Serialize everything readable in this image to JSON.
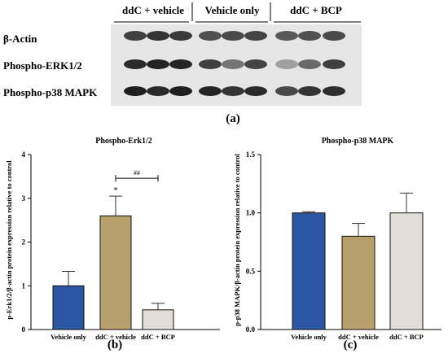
{
  "figure_a": {
    "group_labels": [
      "ddC + vehicle",
      "Vehicle only",
      "ddC + BCP"
    ],
    "row_labels": [
      "β-Actin",
      "Phospho-ERK1/2",
      "Phospho-p38 MAPK"
    ],
    "panel_label": "(a)",
    "band_intensity": [
      [
        0.8,
        0.85,
        0.82,
        0.72,
        0.75,
        0.78,
        0.68,
        0.72,
        0.75
      ],
      [
        0.9,
        0.92,
        0.92,
        0.8,
        0.55,
        0.78,
        0.35,
        0.6,
        0.8
      ],
      [
        0.95,
        0.9,
        0.95,
        0.92,
        0.85,
        0.9,
        0.75,
        0.85,
        0.88
      ]
    ]
  },
  "chart_data": [
    {
      "type": "bar",
      "title": "Phospho-Erk1/2",
      "panel_label": "(b)",
      "ylabel": "p-Erk1/2/β-actin protein expression relative to control",
      "categories": [
        "Vehicle only",
        "ddC + vehicle",
        "ddC + BCP"
      ],
      "values": [
        1.0,
        2.6,
        0.45
      ],
      "errors": [
        0.33,
        0.45,
        0.15
      ],
      "colors": [
        "#2c56a4",
        "#b8a06c",
        "#e2ddd6"
      ],
      "ylim": [
        0,
        4
      ],
      "yticks": [
        "0",
        "1",
        "2",
        "3",
        "4"
      ],
      "annotations": [
        {
          "text": "*",
          "category": "ddC + vehicle"
        },
        {
          "text": "##",
          "between": [
            "ddC + vehicle",
            "ddC + BCP"
          ]
        }
      ]
    },
    {
      "type": "bar",
      "title": "Phospho-p38 MAPK",
      "panel_label": "(c)",
      "ylabel": "p-p38 MAPK/β-actin protein expression relative to control",
      "categories": [
        "Vehicle only",
        "ddC + vehicle",
        "ddC + BCP"
      ],
      "values": [
        1.0,
        0.8,
        1.0
      ],
      "errors": [
        0.01,
        0.11,
        0.17
      ],
      "colors": [
        "#2c56a4",
        "#b8a06c",
        "#e2ddd6"
      ],
      "ylim": [
        0,
        1.5
      ],
      "yticks": [
        "0.0",
        "0.5",
        "1.0",
        "1.5"
      ]
    }
  ]
}
